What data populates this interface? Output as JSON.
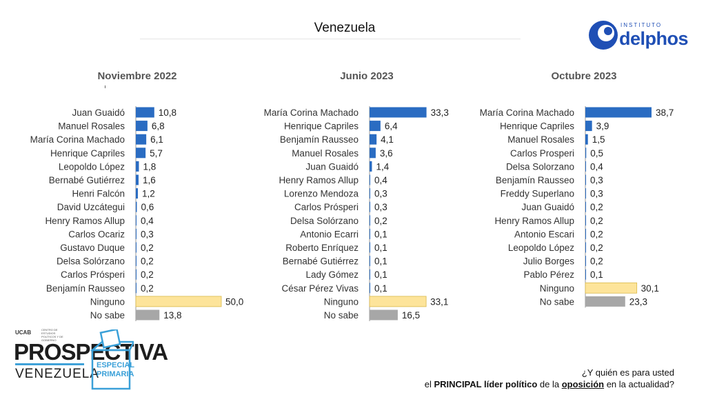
{
  "title": "Venezuela",
  "logo": {
    "small": "INSTITUTO",
    "name": "delphos"
  },
  "branding": {
    "ucab": "UCAB",
    "ucab_sub": "CENTRO DE ESTUDIOS POLÍTICOS Y DE GOBIERNO",
    "line1": "PROSPECTIVA",
    "line2": "VENEZUELA",
    "special": "ESPECIAL PRIMARIA"
  },
  "footnote": {
    "line1": "¿Y quién es para usted",
    "pre": "el ",
    "bold": "PRINCIPAL líder político",
    "mid": " de la ",
    "underline": "oposición",
    "post": " en la actualidad?"
  },
  "colors": {
    "blue": "#2a6cc2",
    "yellow": "#fde49a",
    "gray": "#a7a7a7",
    "blue_small": "#2a6cc2"
  },
  "chart_data": [
    {
      "type": "bar",
      "title": "Noviembre 2022",
      "orientation": "horizontal",
      "categories": [
        "Juan Guaidó",
        "Manuel Rosales",
        "María Corina Machado",
        "Henrique Capriles",
        "Leopoldo López",
        "Bernabé Gutiérrez",
        "Henri Falcón",
        "David Uzcátegui",
        "Henry Ramos Allup",
        "Carlos Ocariz",
        "Gustavo Duque",
        "Delsa Solórzano",
        "Carlos Prósperi",
        "Benjamín Rausseo",
        "Ninguno",
        "No sabe"
      ],
      "values": [
        10.8,
        6.8,
        6.1,
        5.7,
        1.8,
        1.6,
        1.2,
        0.6,
        0.4,
        0.3,
        0.2,
        0.2,
        0.2,
        0.2,
        50.0,
        13.8
      ],
      "labels": [
        "10,8",
        "6,8",
        "6,1",
        "5,7",
        "1,8",
        "1,6",
        "1,2",
        "0,6",
        "0,4",
        "0,3",
        "0,2",
        "0,2",
        "0,2",
        "0,2",
        "50,0",
        "13,8"
      ]
    },
    {
      "type": "bar",
      "title": "Junio 2023",
      "orientation": "horizontal",
      "categories": [
        "María Corina Machado",
        "Henrique Capriles",
        "Benjamín Rausseo",
        "Manuel Rosales",
        "Juan Guaidó",
        "Henry Ramos Allup",
        "Lorenzo Mendoza",
        "Carlos Prósperi",
        "Delsa Solórzano",
        "Antonio Ecarri",
        "Roberto Enríquez",
        "Bernabé Gutiérrez",
        "Lady Gómez",
        "César Pérez Vivas",
        "Ninguno",
        "No sabe"
      ],
      "values": [
        33.3,
        6.4,
        4.1,
        3.6,
        1.4,
        0.4,
        0.3,
        0.3,
        0.2,
        0.1,
        0.1,
        0.1,
        0.1,
        0.1,
        33.1,
        16.5
      ],
      "labels": [
        "33,3",
        "6,4",
        "4,1",
        "3,6",
        "1,4",
        "0,4",
        "0,3",
        "0,3",
        "0,2",
        "0,1",
        "0,1",
        "0,1",
        "0,1",
        "0,1",
        "33,1",
        "16,5"
      ]
    },
    {
      "type": "bar",
      "title": "Octubre 2023",
      "orientation": "horizontal",
      "categories": [
        "María Corina Machado",
        "Henrique Capriles",
        "Manuel Rosales",
        "Carlos Prosperi",
        "Delsa Solorzano",
        "Benjamín Rausseo",
        "Freddy Superlano",
        "Juan Guaidó",
        "Henry Ramos Allup",
        "Antonio Escari",
        "Leopoldo López",
        "Julio Borges",
        "Pablo Pérez",
        "Ninguno",
        "No sabe"
      ],
      "values": [
        38.7,
        3.9,
        1.5,
        0.5,
        0.4,
        0.3,
        0.3,
        0.2,
        0.2,
        0.2,
        0.2,
        0.2,
        0.1,
        30.1,
        23.3
      ],
      "labels": [
        "38,7",
        "3,9",
        "1,5",
        "0,5",
        "0,4",
        "0,3",
        "0,3",
        "0,2",
        "0,2",
        "0,2",
        "0,2",
        "0,2",
        "0,1",
        "30,1",
        "23,3"
      ]
    }
  ]
}
